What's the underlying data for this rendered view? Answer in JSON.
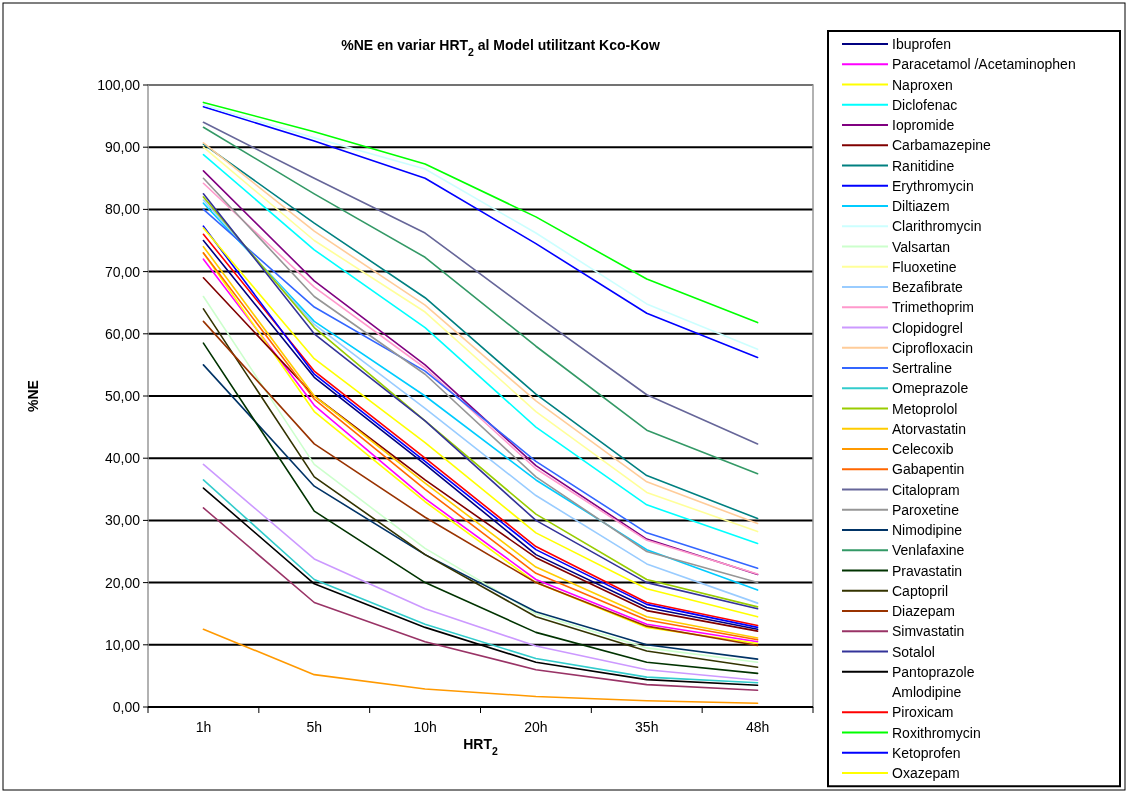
{
  "chart_data": {
    "type": "line",
    "title": "%NE en variar HRT$_{2}$ al Model utilitzant Kco-Kow",
    "xlabel": "HRT$_{2}$",
    "ylabel": "%NE",
    "categories": [
      "1h",
      "5h",
      "10h",
      "20h",
      "35h",
      "48h"
    ],
    "ylim": [
      0,
      100
    ],
    "yticks": [
      {
        "value": 0,
        "label": "0,00"
      },
      {
        "value": 10,
        "label": "10,00"
      },
      {
        "value": 20,
        "label": "20,00"
      },
      {
        "value": 30,
        "label": "30,00"
      },
      {
        "value": 40,
        "label": "40,00"
      },
      {
        "value": 50,
        "label": "50,00"
      },
      {
        "value": 60,
        "label": "60,00"
      },
      {
        "value": 70,
        "label": "70,00"
      },
      {
        "value": 80,
        "label": "80,00"
      },
      {
        "value": 90,
        "label": "90,00"
      },
      {
        "value": 100,
        "label": "100,00"
      }
    ],
    "grid": "y",
    "legend": "right",
    "line_style": "solid",
    "marker": "none",
    "series": [
      {
        "name": "Ibuprofen",
        "color": "#000080",
        "values": [
          75,
          53,
          39,
          24.5,
          16,
          12.5
        ]
      },
      {
        "name": "Paracetamol /Acetaminophen",
        "color": "#ff00ff",
        "values": [
          72,
          48.5,
          33.5,
          20.5,
          13.3,
          10.5
        ]
      },
      {
        "name": "Naproxen",
        "color": "#ffff00",
        "values": [
          73,
          47.5,
          33,
          20,
          12.8,
          10.2
        ]
      },
      {
        "name": "Diclofenac",
        "color": "#00ffff",
        "values": [
          88.8,
          73.5,
          61,
          45,
          32.5,
          26.3
        ]
      },
      {
        "name": "Iopromide",
        "color": "#800080",
        "values": [
          86.2,
          68.5,
          55,
          38.8,
          27,
          21.3
        ]
      },
      {
        "name": "Carbamazepine",
        "color": "#800000",
        "values": [
          69,
          50,
          36.5,
          24,
          15.5,
          12.2
        ]
      },
      {
        "name": "Ranitidine",
        "color": "#008080",
        "values": [
          90.5,
          77.8,
          65.8,
          50.3,
          37.2,
          30.3
        ]
      },
      {
        "name": "Erythromycin",
        "color": "#0000ff",
        "values": [
          96.5,
          91,
          85,
          74.5,
          63.3,
          56.2
        ]
      },
      {
        "name": "Diltiazem",
        "color": "#00ccff",
        "values": [
          81,
          62,
          50,
          36.5,
          25.3,
          18.8
        ]
      },
      {
        "name": "Clarithromycin",
        "color": "#ccffff",
        "values": [
          96.8,
          91.5,
          86.5,
          76.2,
          64.8,
          57.5
        ]
      },
      {
        "name": "Valsartan",
        "color": "#ccffcc",
        "values": [
          66,
          39,
          25.5,
          15,
          9.5,
          7.2
        ]
      },
      {
        "name": "Fluoxetine",
        "color": "#ffff99",
        "values": [
          90,
          75,
          63.5,
          47.5,
          34.5,
          28.2
        ]
      },
      {
        "name": "Bezafibrate",
        "color": "#99ccff",
        "values": [
          81.5,
          61.5,
          48,
          34,
          23,
          16.7
        ]
      },
      {
        "name": "Trimethoprim",
        "color": "#ff99cc",
        "values": [
          84.2,
          67.5,
          54.5,
          38.3,
          26.8,
          21.4
        ]
      },
      {
        "name": "Clopidogrel",
        "color": "#cc99ff",
        "values": [
          39,
          23.8,
          15.8,
          9.8,
          6,
          4.3
        ]
      },
      {
        "name": "Ciprofloxacin",
        "color": "#ffcc99",
        "values": [
          90.7,
          76.5,
          64.6,
          49.2,
          36.2,
          29.5
        ]
      },
      {
        "name": "Sertraline",
        "color": "#3366ff",
        "values": [
          80,
          64.3,
          54,
          39.5,
          28,
          22.3
        ]
      },
      {
        "name": "Omeprazole",
        "color": "#33cccc",
        "values": [
          36.5,
          20.5,
          13.3,
          7.8,
          4.8,
          3.9
        ]
      },
      {
        "name": "Metoprolol",
        "color": "#99cc00",
        "values": [
          82,
          61,
          46,
          31,
          20.5,
          16.1
        ]
      },
      {
        "name": "Atorvastatin",
        "color": "#ffcc00",
        "values": [
          74,
          50,
          36,
          22.5,
          14.5,
          11.1
        ]
      },
      {
        "name": "Celecoxib",
        "color": "#ff9900",
        "values": [
          12.5,
          5.2,
          2.9,
          1.7,
          1,
          0.6
        ]
      },
      {
        "name": "Gabapentin",
        "color": "#ff6600",
        "values": [
          73,
          49.5,
          35,
          21.5,
          14,
          10.8
        ]
      },
      {
        "name": "Citalopram",
        "color": "#666699",
        "values": [
          94,
          85,
          76.2,
          63,
          50.2,
          42.3
        ]
      },
      {
        "name": "Paroxetine",
        "color": "#969696",
        "values": [
          85,
          66,
          53.5,
          37,
          25,
          20
        ]
      },
      {
        "name": "Nimodipine",
        "color": "#003366",
        "values": [
          55,
          35.5,
          24.5,
          15.3,
          10,
          7.7
        ]
      },
      {
        "name": "Venlafaxine",
        "color": "#339966",
        "values": [
          93.2,
          82.5,
          72.3,
          58,
          44.5,
          37.5
        ]
      },
      {
        "name": "Pravastatin",
        "color": "#003300",
        "values": [
          58.5,
          31.5,
          20,
          12,
          7.2,
          5.4
        ]
      },
      {
        "name": "Captopril",
        "color": "#333300",
        "values": [
          64,
          37,
          24.5,
          14.5,
          9,
          6.4
        ]
      },
      {
        "name": "Diazepam",
        "color": "#993300",
        "values": [
          62,
          42.3,
          30.5,
          20,
          13,
          9.9
        ]
      },
      {
        "name": "Simvastatin",
        "color": "#993366",
        "values": [
          32,
          16.8,
          10.5,
          6,
          3.6,
          2.7
        ]
      },
      {
        "name": "Sotalol",
        "color": "#333399",
        "values": [
          82.5,
          60,
          46,
          30,
          20,
          15.8
        ]
      },
      {
        "name": "Pantoprazole",
        "color": "#000000",
        "values": [
          35.2,
          19.8,
          12.8,
          7.2,
          4.4,
          3.5
        ]
      },
      {
        "name": "Amlodipine",
        "color": null,
        "values": [
          null,
          null,
          null,
          null,
          null,
          null
        ]
      },
      {
        "name": "Piroxicam",
        "color": "#ff0000",
        "values": [
          76,
          54,
          40,
          25.8,
          16.8,
          13.1
        ]
      },
      {
        "name": "Roxithromycin",
        "color": "#00ff00",
        "values": [
          97.2,
          92.5,
          87.3,
          78.8,
          68.8,
          61.8
        ]
      },
      {
        "name": "Ketoprofen",
        "color": "#0000ff",
        "values": [
          77.3,
          53.5,
          39.5,
          25.3,
          16.5,
          12.8
        ]
      },
      {
        "name": "Oxazepam",
        "color": "#ffff00",
        "values": [
          77,
          56,
          42.5,
          28,
          19,
          14.5
        ]
      }
    ]
  }
}
